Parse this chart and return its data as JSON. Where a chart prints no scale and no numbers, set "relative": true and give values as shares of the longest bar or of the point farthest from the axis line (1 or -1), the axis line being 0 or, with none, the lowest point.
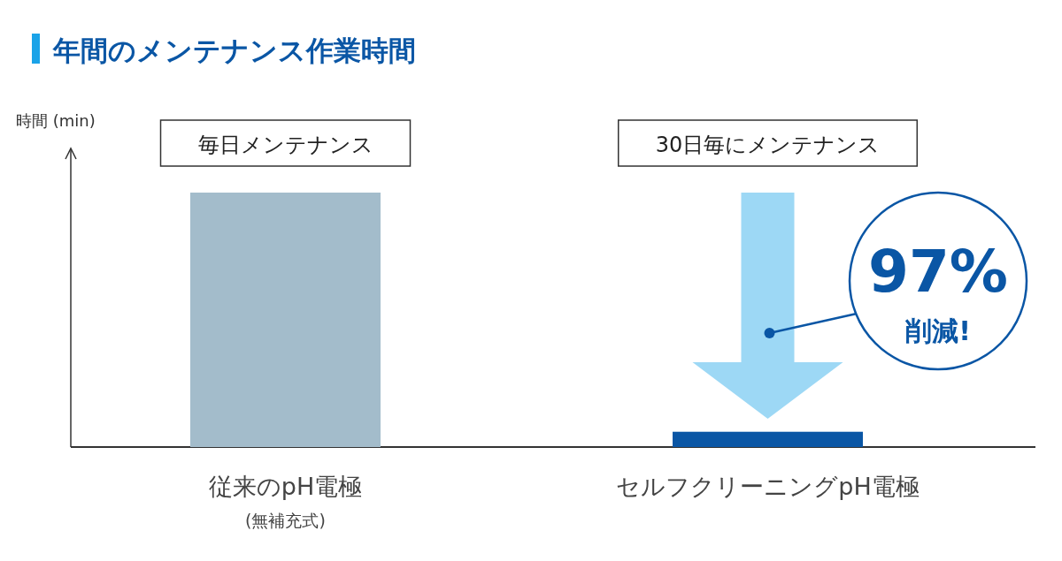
{
  "chart_data": {
    "type": "bar",
    "title": "年間のメンテナンス作業時間",
    "ylabel": "時間 (min)",
    "relative": true,
    "categories": [
      "従来のpH電極 (無補充式)",
      "セルフクリーニングpH電極"
    ],
    "values": [
      1,
      0.06
    ],
    "colors": [
      "#a3bccb",
      "#0a56a5"
    ],
    "annotations": [
      "毎日メンテナンス",
      "30日毎にメンテナンス",
      "97% 削減!"
    ]
  }
}
